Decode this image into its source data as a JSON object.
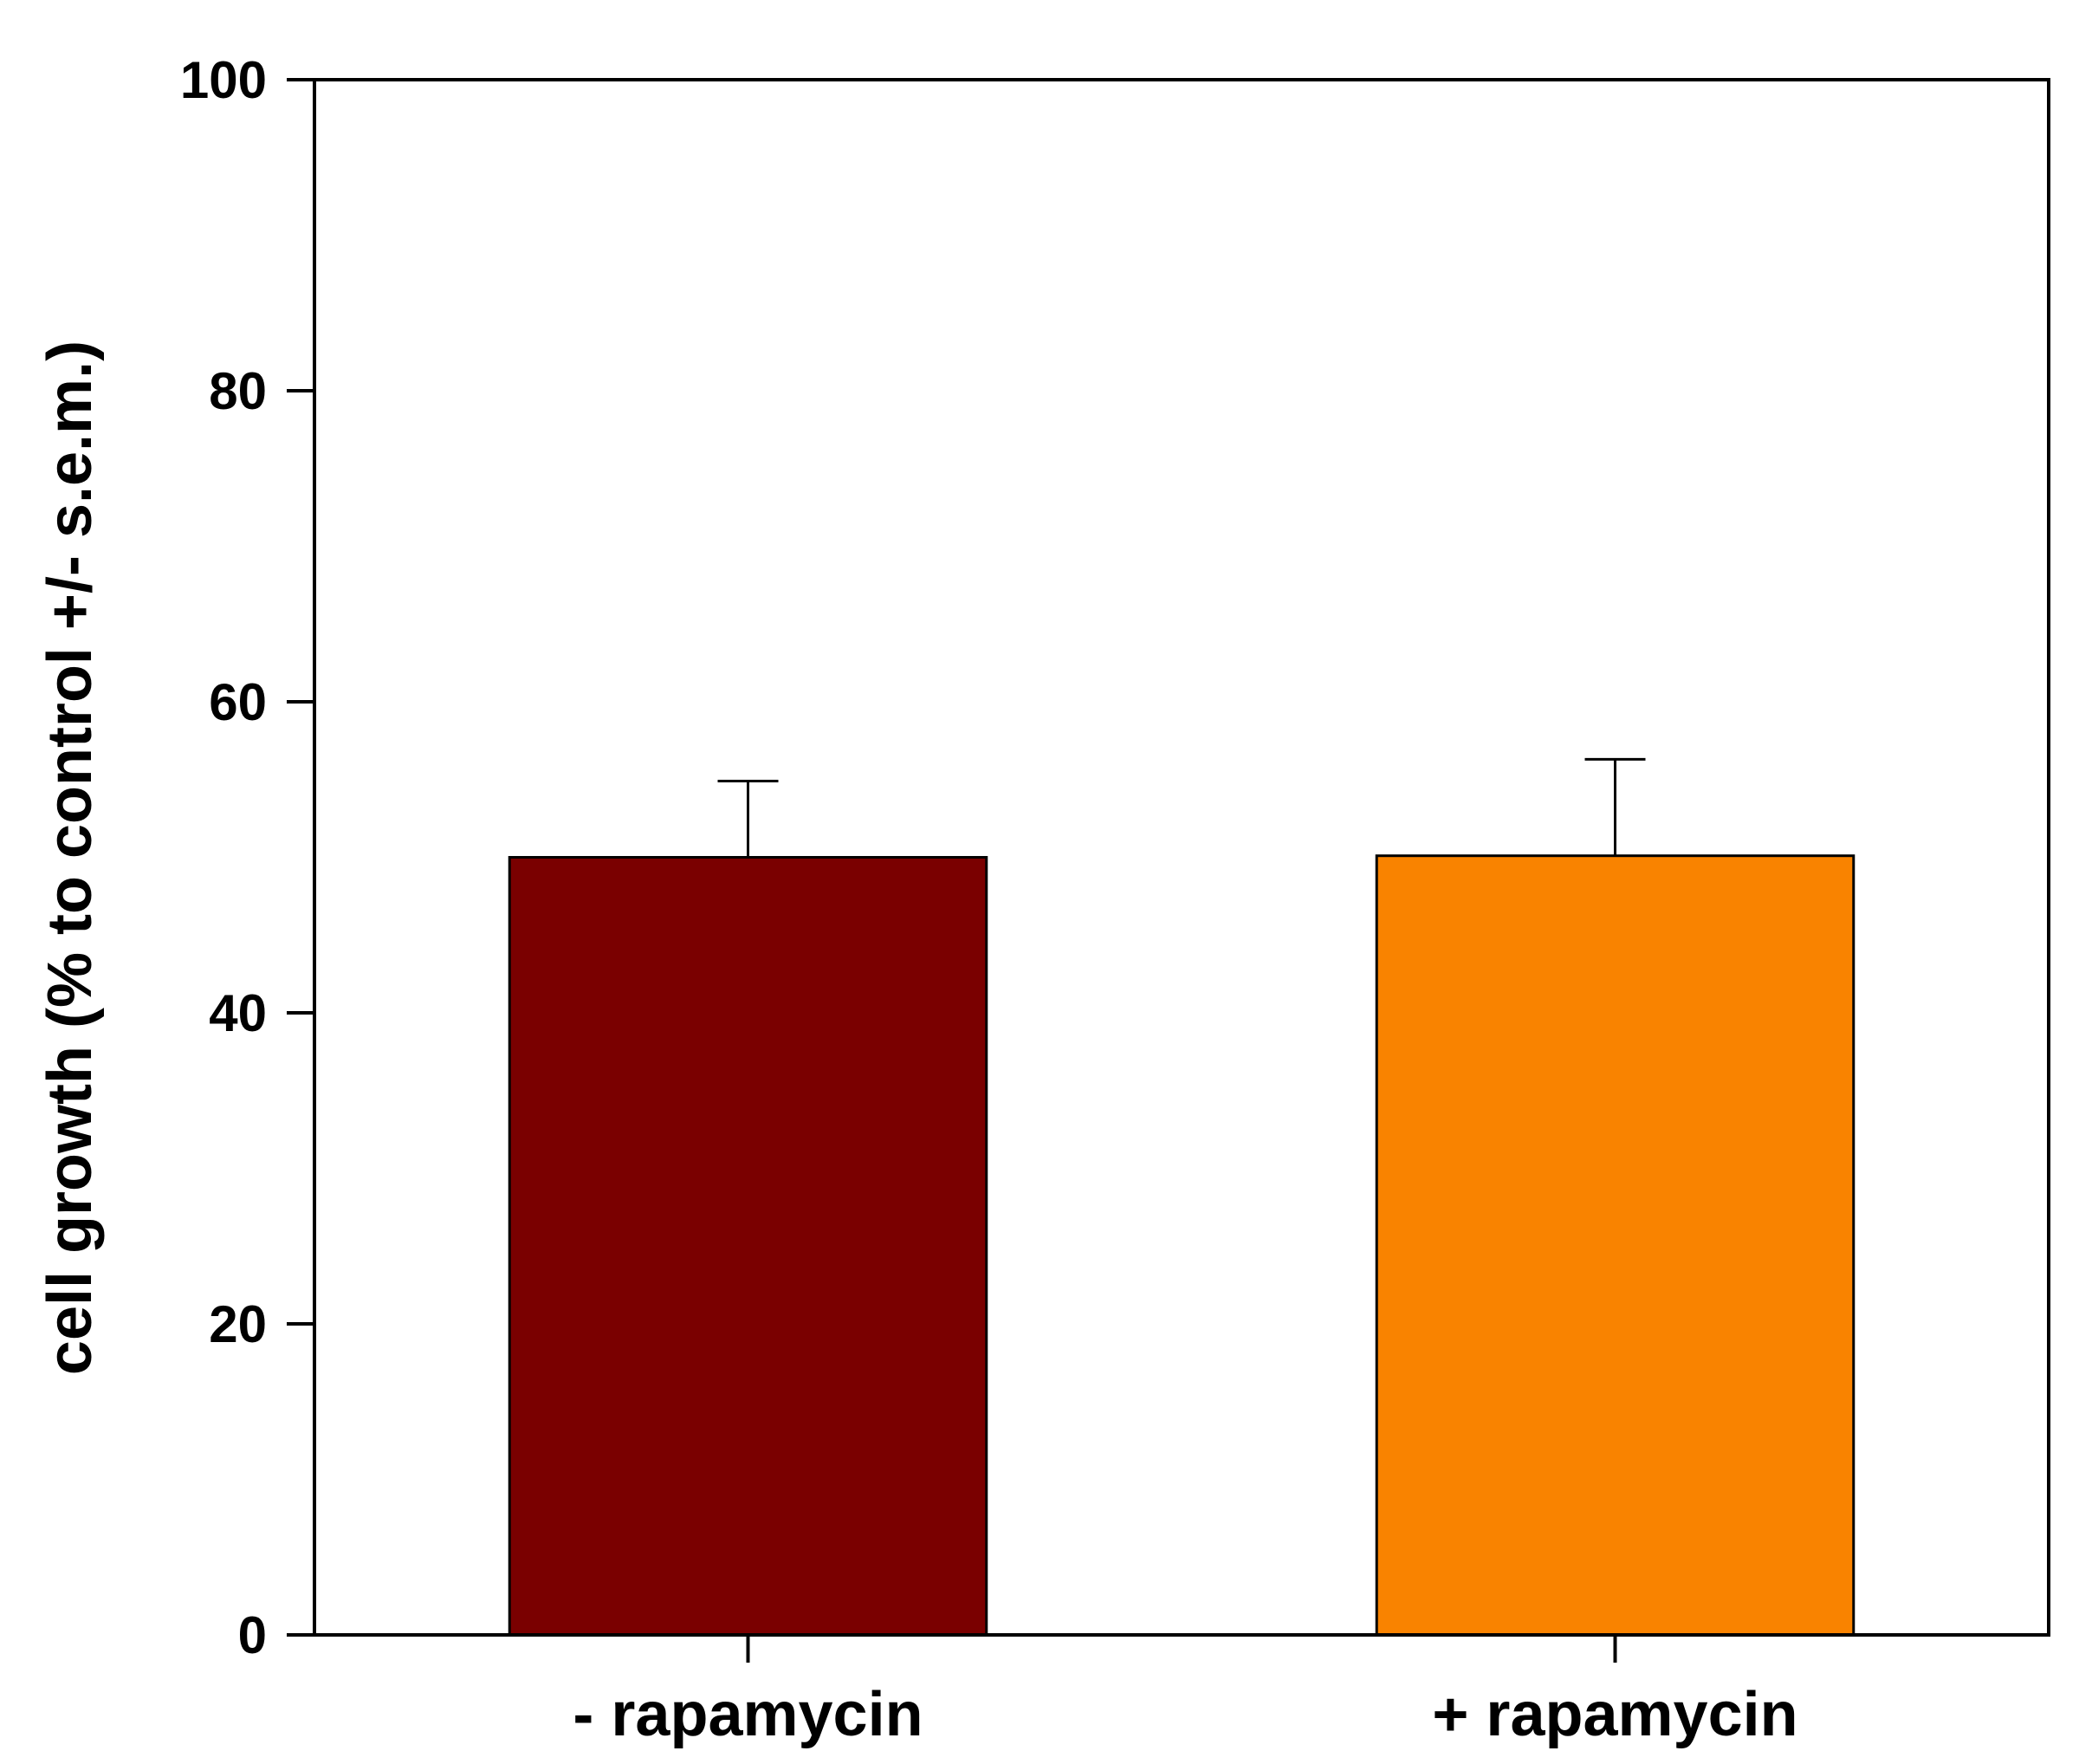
{
  "chart_data": {
    "type": "bar",
    "categories": [
      "- rapamycin",
      "+ rapamycin"
    ],
    "values": [
      50.0,
      50.1
    ],
    "errors": [
      4.9,
      6.2
    ],
    "colors": [
      "#7A0000",
      "#F98300"
    ],
    "title": "",
    "xlabel": "",
    "ylabel": "cell growth (% to control +/- s.e.m.)",
    "ylim": [
      0,
      100
    ],
    "yticks": [
      0,
      20,
      40,
      60,
      80,
      100
    ],
    "grid": false,
    "frame": "box",
    "error_bars": "upper only"
  }
}
